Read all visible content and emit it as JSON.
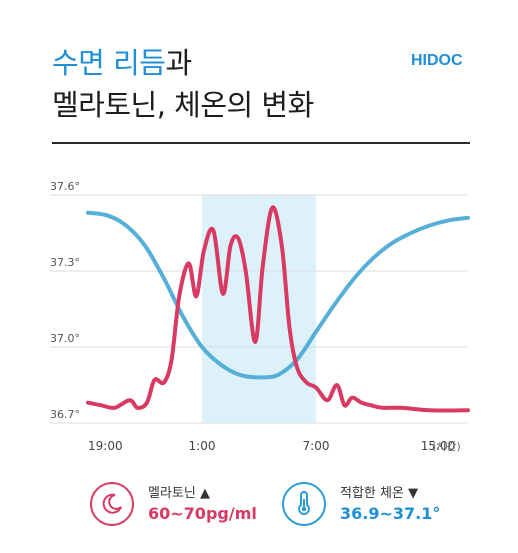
{
  "header": {
    "title_highlight": "수면 리듬",
    "title_rest": "과",
    "title_line2": "멜라토닌, 체온의 변화",
    "logo_main": "HIDOC"
  },
  "colors": {
    "melatonin": "#d93a62",
    "temperature": "#55afd9",
    "sleep_band": "#ddf1fb",
    "title_accent": "#1f8fd6"
  },
  "chart_data": {
    "type": "line",
    "y_ticks": [
      "37.6°",
      "37.3°",
      "37.0°",
      "36.7°"
    ],
    "x_ticks": [
      "19:00",
      "1:00",
      "7:00",
      "15:00"
    ],
    "x_unit": "(시간)",
    "ylim": [
      36.7,
      37.6
    ],
    "x_range_hours": [
      19,
      39
    ],
    "sleep_period": [
      1,
      7
    ],
    "grid": true,
    "series": [
      {
        "name": "적합한 체온",
        "x": [
          19,
          20,
          21,
          22,
          23,
          24,
          25,
          26,
          27,
          28,
          29,
          30,
          31,
          32,
          33,
          34,
          35,
          36,
          37,
          38,
          39
        ],
        "values": [
          37.53,
          37.52,
          37.48,
          37.4,
          37.27,
          37.12,
          37.0,
          36.93,
          36.89,
          36.88,
          36.89,
          36.95,
          37.06,
          37.17,
          37.27,
          37.35,
          37.41,
          37.45,
          37.48,
          37.5,
          37.51
        ]
      },
      {
        "name": "멜라토닌",
        "x": [
          19,
          19.7,
          20.4,
          21.2,
          21.6,
          22.1,
          22.5,
          23.0,
          23.4,
          23.8,
          24.3,
          24.7,
          25.1,
          25.6,
          26.1,
          26.5,
          26.9,
          27.3,
          27.8,
          28.2,
          28.7,
          29.2,
          29.6,
          30.0,
          30.5,
          31.0,
          31.6,
          32.1,
          32.5,
          32.9,
          33.4,
          33.9,
          34.5,
          35.5,
          37.0,
          39.0
        ],
        "values": [
          36.78,
          36.77,
          36.76,
          36.79,
          36.76,
          36.78,
          36.87,
          36.86,
          36.95,
          37.2,
          37.33,
          37.2,
          37.38,
          37.46,
          37.21,
          37.4,
          37.43,
          37.3,
          37.02,
          37.32,
          37.55,
          37.4,
          37.08,
          36.92,
          36.86,
          36.84,
          36.79,
          36.85,
          36.77,
          36.8,
          36.78,
          36.77,
          36.76,
          36.76,
          36.75,
          36.75
        ]
      }
    ]
  },
  "legend": {
    "melatonin_label": "멜라토닌 ▲",
    "melatonin_value": "60~70pg/ml",
    "temperature_label": "적합한 체온 ▼",
    "temperature_value": "36.9~37.1°",
    "melatonin_icon": "moon-icon",
    "temperature_icon": "thermometer-icon"
  }
}
